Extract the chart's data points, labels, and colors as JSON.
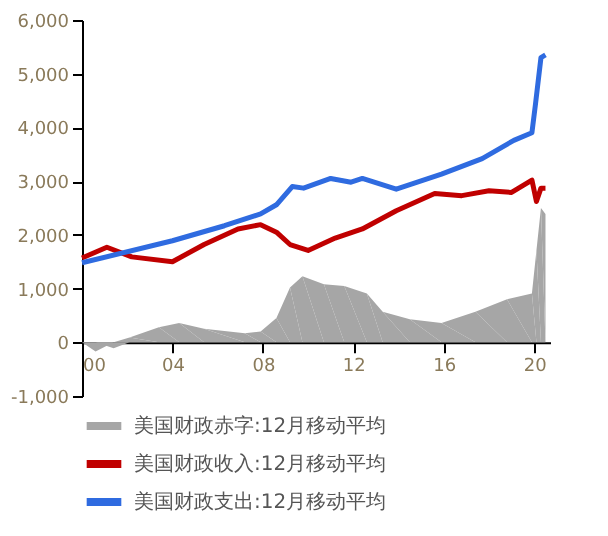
{
  "chart_data": {
    "type": "line",
    "series": [
      {
        "name": "美国财政赤字:12月移动平均",
        "type": "area",
        "color": "#a6a6a6",
        "x": [
          2000,
          2000.6,
          2001.4,
          2002.1,
          2003.4,
          2004.3,
          2005.4,
          2007.2,
          2007.9,
          2008.6,
          2009.2,
          2009.75,
          2010.7,
          2011.6,
          2012.6,
          2013.3,
          2014.5,
          2015.9,
          2017.4,
          2018.8,
          2019.9,
          2020.1,
          2020.3,
          2020.5
        ],
        "values": [
          0,
          -170,
          -110,
          90,
          280,
          360,
          250,
          170,
          200,
          450,
          1020,
          1230,
          1080,
          1050,
          910,
          570,
          430,
          360,
          570,
          800,
          910,
          1710,
          2500,
          2390
        ]
      },
      {
        "name": "美国财政收入:12月移动平均",
        "color": "#c00000",
        "x": [
          2000,
          2001.1,
          2002.2,
          2004,
          2005.4,
          2006.9,
          2007.9,
          2008.6,
          2009.2,
          2010,
          2011.2,
          2012.4,
          2013.9,
          2015.6,
          2016.8,
          2018,
          2019,
          2019.9,
          2020.1,
          2020.3,
          2020.5
        ],
        "values": [
          1570,
          1770,
          1590,
          1500,
          1820,
          2110,
          2190,
          2050,
          1820,
          1710,
          1940,
          2110,
          2450,
          2770,
          2730,
          2820,
          2790,
          3020,
          2620,
          2870,
          2870
        ]
      },
      {
        "name": "美国财政支出:12月移动平均",
        "color": "#2f6be0",
        "x": [
          2000,
          2004,
          2006.3,
          2007.9,
          2008.6,
          2009.3,
          2009.8,
          2011,
          2011.9,
          2012.4,
          2013.9,
          2015.9,
          2017.7,
          2019.1,
          2019.9,
          2020.06,
          2020.3,
          2020.5
        ],
        "values": [
          1480,
          1890,
          2170,
          2390,
          2560,
          2900,
          2870,
          3050,
          2980,
          3050,
          2850,
          3130,
          3420,
          3760,
          3900,
          4440,
          5300,
          5350
        ]
      }
    ],
    "xlim": [
      2000,
      2020.7
    ],
    "xticks": [
      {
        "value": 2000,
        "label": "00"
      },
      {
        "value": 2004,
        "label": "04"
      },
      {
        "value": 2008,
        "label": "08"
      },
      {
        "value": 2012,
        "label": "12"
      },
      {
        "value": 2016,
        "label": "16"
      },
      {
        "value": 2020,
        "label": "20"
      }
    ],
    "ylim": [
      -1000,
      6000
    ],
    "yticks": [
      {
        "value": -1000,
        "label": "-1,000"
      },
      0,
      {
        "value": 1000,
        "label": "1,000"
      },
      {
        "value": 2000,
        "label": "2,000"
      },
      {
        "value": 3000,
        "label": "3,000"
      },
      {
        "value": 4000,
        "label": "4,000"
      },
      {
        "value": 5000,
        "label": "5,000"
      },
      {
        "value": 6000,
        "label": "6,000"
      }
    ],
    "grid": false,
    "legend": "bottom"
  }
}
